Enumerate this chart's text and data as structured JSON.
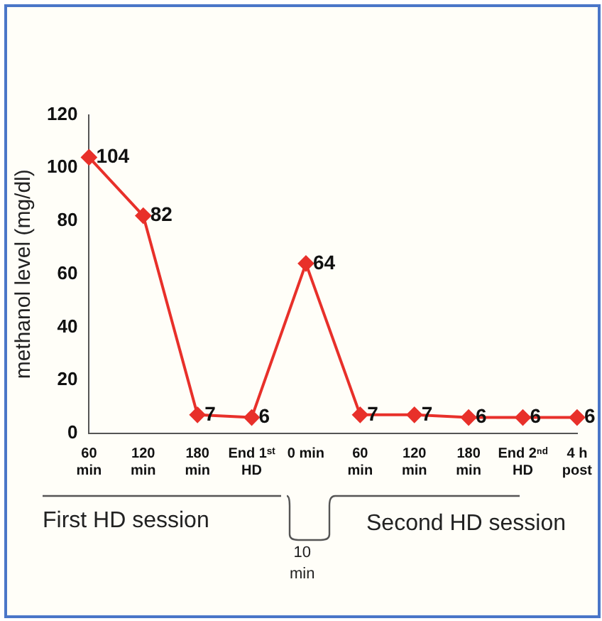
{
  "chart_data": {
    "type": "line",
    "ylabel": "methanol level (mg/dl)",
    "categories": [
      "60\nmin",
      "120\nmin",
      "180\nmin",
      "End 1ˢᵗ\nHD",
      "0 min",
      "60\nmin",
      "120\nmin",
      "180\nmin",
      "End 2ⁿᵈ\nHD",
      "4 h\npost"
    ],
    "series": [
      {
        "color": "#e8302a",
        "values": [
          104,
          82,
          7,
          6,
          64,
          7,
          7,
          6,
          6,
          6
        ]
      }
    ],
    "ylim": [
      0,
      120
    ],
    "yticks": [
      0,
      20,
      40,
      60,
      80,
      100,
      120
    ],
    "grid": false,
    "legend": false,
    "marker": "diamond",
    "line_style": "solid",
    "data_labels": true,
    "annotations": [
      "First HD session",
      "10\nmin",
      "Second HD session"
    ]
  }
}
